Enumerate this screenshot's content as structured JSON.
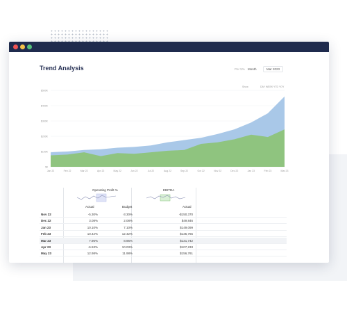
{
  "colors": {
    "titlebar": "#1f2b4d",
    "dot_red": "#f05454",
    "dot_yellow": "#f4c14a",
    "dot_green": "#55c07a",
    "budget_area": "#a9c8e8",
    "actual_area": "#8fc47f"
  },
  "header": {
    "title": "Trend Analysis",
    "ctrl_a": "Per 5%",
    "ctrl_b": "Month",
    "ctrl_c": "Mar 2023",
    "sub_label": "Show",
    "sub_opts": "DAY  WEEK  YTD  YOY"
  },
  "chart_data": {
    "type": "area",
    "x": [
      "Jan 22",
      "Feb 22",
      "Mar 22",
      "Apr 22",
      "May 22",
      "Jun 22",
      "Jul 22",
      "Aug 22",
      "Sep 22",
      "Oct 22",
      "Nov 22",
      "Dec 22",
      "Jan 23",
      "Feb 23",
      "Mar 23"
    ],
    "y_ticks": [
      "$0",
      "$100K",
      "$200K",
      "$300K",
      "$400K",
      "$500K"
    ],
    "ylim": [
      0,
      500
    ],
    "series": [
      {
        "values": [
          95,
          100,
          110,
          115,
          125,
          130,
          140,
          160,
          175,
          190,
          215,
          245,
          290,
          350,
          460
        ]
      },
      {
        "values": [
          75,
          80,
          95,
          70,
          90,
          85,
          95,
          105,
          110,
          150,
          160,
          180,
          210,
          195,
          245
        ]
      }
    ]
  },
  "table": {
    "group1": "Operating Profit %",
    "group2": "EBITDA",
    "col_actual": "Actual",
    "col_budget": "Budget",
    "col_actual2": "Actual",
    "rows": [
      {
        "label": "Nov 22",
        "a": "-5.30%",
        "b": "-3.30%",
        "c": "-$150,370"
      },
      {
        "label": "Dec 22",
        "a": "3.08%",
        "b": "2.08%",
        "c": "$49,846"
      },
      {
        "label": "Jan 23",
        "a": "10.10%",
        "b": "7.10%",
        "c": "$149,099"
      },
      {
        "label": "Feb 23",
        "a": "10.42%",
        "b": "12.42%",
        "c": "$135,765"
      },
      {
        "label": "Mar 23",
        "a": "7.96%",
        "b": "8.96%",
        "c": "$131,742"
      },
      {
        "label": "Apr 23",
        "a": "-6.53%",
        "b": "10.03%",
        "c": "$107,233"
      },
      {
        "label": "May 23",
        "a": "12.98%",
        "b": "11.98%",
        "c": "$156,761"
      }
    ]
  }
}
